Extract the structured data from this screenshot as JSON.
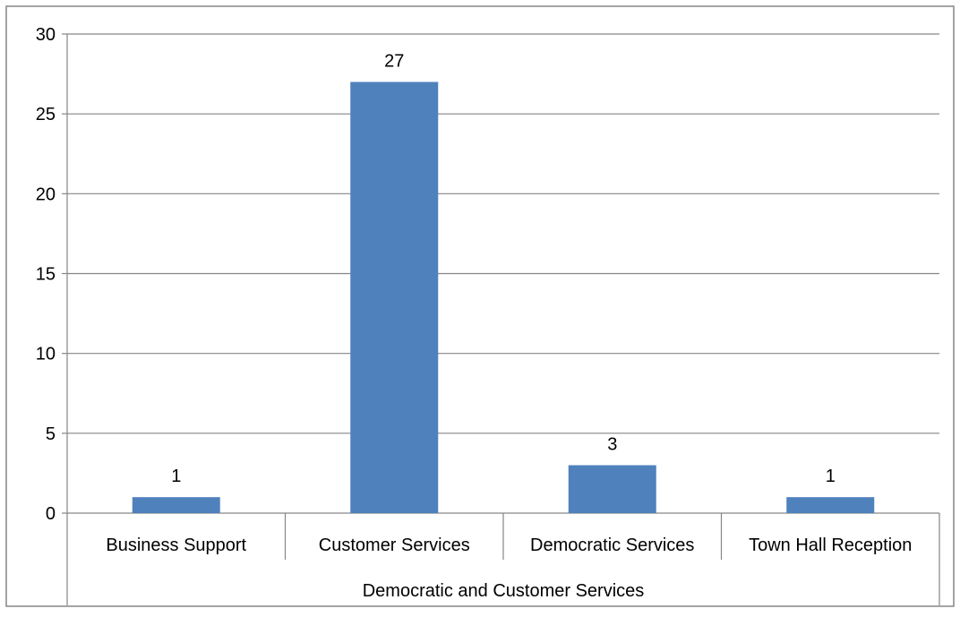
{
  "colors": {
    "bar": "#4F81BD",
    "grid": "#868686",
    "text": "#000000",
    "border": "#868686",
    "background": "#FFFFFF"
  },
  "chart_data": {
    "type": "bar",
    "title": "",
    "xlabel": "",
    "ylabel": "",
    "categories": [
      "Business Support",
      "Customer Services",
      "Democratic Services",
      "Town Hall Reception"
    ],
    "group_label": "Democratic and Customer Services",
    "values": [
      1,
      27,
      3,
      1
    ],
    "data_labels": [
      "1",
      "27",
      "3",
      "1"
    ],
    "ylim": [
      0,
      30
    ],
    "yticks": [
      0,
      5,
      10,
      15,
      20,
      25,
      30
    ],
    "grid": true,
    "legend": "none"
  }
}
